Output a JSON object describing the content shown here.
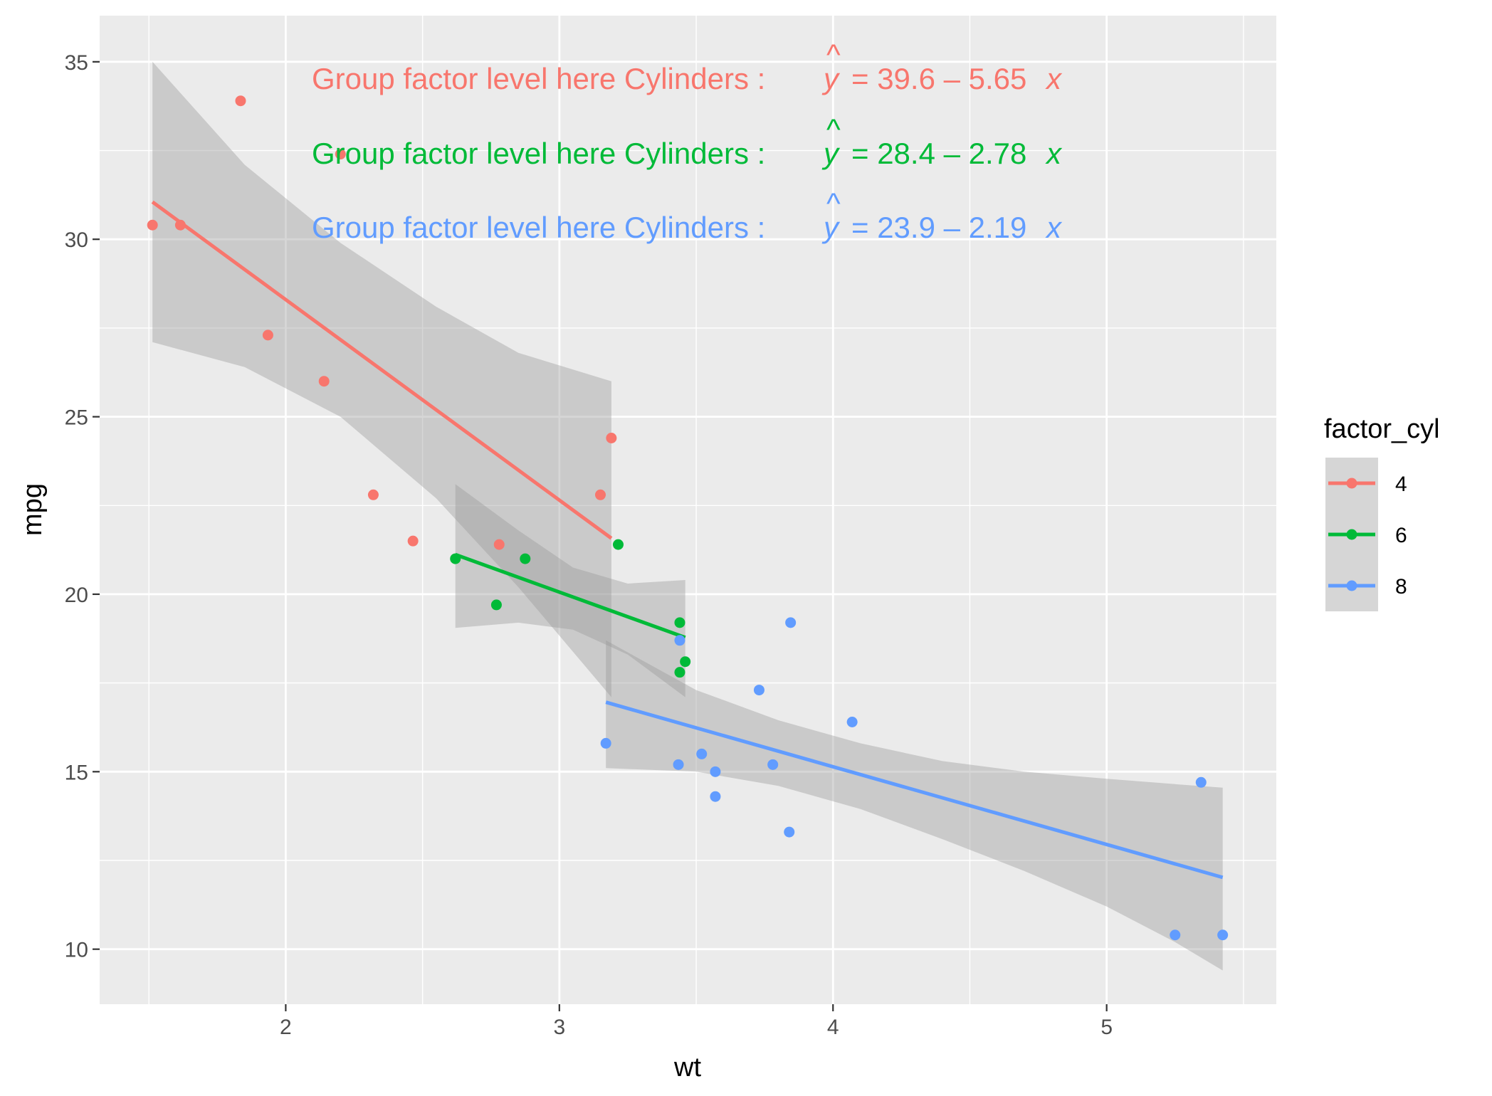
{
  "chart_data": {
    "type": "scatter",
    "xlabel": "wt",
    "ylabel": "mpg",
    "xlim": [
      1.32,
      5.62
    ],
    "ylim": [
      8.45,
      36.3
    ],
    "x_ticks": [
      2,
      3,
      4,
      5
    ],
    "x_tick_labels": [
      "2",
      "3",
      "4",
      "5"
    ],
    "y_ticks": [
      10,
      15,
      20,
      25,
      30,
      35
    ],
    "y_tick_labels": [
      "10",
      "15",
      "20",
      "25",
      "30",
      "35"
    ],
    "grid": true,
    "legend": {
      "title": "factor_cyl",
      "position": "right"
    },
    "series": [
      {
        "name": "4",
        "color": "#F8766D",
        "points": [
          [
            1.513,
            30.4
          ],
          [
            1.615,
            30.4
          ],
          [
            1.835,
            33.9
          ],
          [
            1.935,
            27.3
          ],
          [
            2.14,
            26.0
          ],
          [
            2.2,
            32.4
          ],
          [
            2.32,
            22.8
          ],
          [
            2.465,
            21.5
          ],
          [
            2.78,
            21.4
          ],
          [
            3.15,
            22.8
          ],
          [
            3.19,
            24.4
          ]
        ],
        "fit": {
          "intercept": 39.6,
          "slope": -5.65,
          "x_range": [
            1.513,
            3.19
          ]
        },
        "band": {
          "x": [
            1.513,
            1.85,
            2.2,
            2.55,
            2.85,
            3.19
          ],
          "lower": [
            27.1,
            26.4,
            25.0,
            22.7,
            20.2,
            17.1
          ],
          "upper": [
            35.0,
            32.1,
            29.9,
            28.1,
            26.8,
            26.0
          ]
        },
        "equation": {
          "prefix": "Group factor level here Cylinders :",
          "yhat": "y",
          "rhs": "= 39.6 – 5.65",
          "var": "x"
        }
      },
      {
        "name": "6",
        "color": "#00BA38",
        "points": [
          [
            2.62,
            21.0
          ],
          [
            2.77,
            19.7
          ],
          [
            2.875,
            21.0
          ],
          [
            3.215,
            21.4
          ],
          [
            3.44,
            19.2
          ],
          [
            3.44,
            17.8
          ],
          [
            3.46,
            18.1
          ]
        ],
        "fit": {
          "intercept": 28.4,
          "slope": -2.78,
          "x_range": [
            2.62,
            3.46
          ]
        },
        "band": {
          "x": [
            2.62,
            2.85,
            3.05,
            3.25,
            3.46
          ],
          "lower": [
            19.05,
            19.2,
            19.0,
            18.3,
            17.1
          ],
          "upper": [
            23.1,
            21.8,
            20.75,
            20.3,
            20.4
          ]
        },
        "equation": {
          "prefix": "Group factor level here Cylinders :",
          "yhat": "y",
          "rhs": "= 28.4 – 2.78",
          "var": "x"
        }
      },
      {
        "name": "8",
        "color": "#619CFF",
        "points": [
          [
            3.17,
            15.8
          ],
          [
            3.435,
            15.2
          ],
          [
            3.44,
            18.7
          ],
          [
            3.52,
            15.5
          ],
          [
            3.57,
            15.0
          ],
          [
            3.57,
            14.3
          ],
          [
            3.73,
            17.3
          ],
          [
            3.78,
            15.2
          ],
          [
            3.84,
            13.3
          ],
          [
            3.845,
            19.2
          ],
          [
            4.07,
            16.4
          ],
          [
            5.25,
            10.4
          ],
          [
            5.345,
            14.7
          ],
          [
            5.424,
            10.4
          ]
        ],
        "fit": {
          "intercept": 23.9,
          "slope": -2.19,
          "x_range": [
            3.17,
            5.424
          ]
        },
        "band": {
          "x": [
            3.17,
            3.5,
            3.8,
            4.1,
            4.4,
            4.7,
            5.0,
            5.25,
            5.424
          ],
          "lower": [
            15.1,
            15.0,
            14.6,
            13.95,
            13.1,
            12.2,
            11.2,
            10.2,
            9.4
          ],
          "upper": [
            18.7,
            17.3,
            16.45,
            15.8,
            15.3,
            15.0,
            14.8,
            14.65,
            14.55
          ]
        },
        "equation": {
          "prefix": "Group factor level here Cylinders :",
          "yhat": "y",
          "rhs": "= 23.9 – 2.19",
          "var": "x"
        }
      }
    ]
  }
}
